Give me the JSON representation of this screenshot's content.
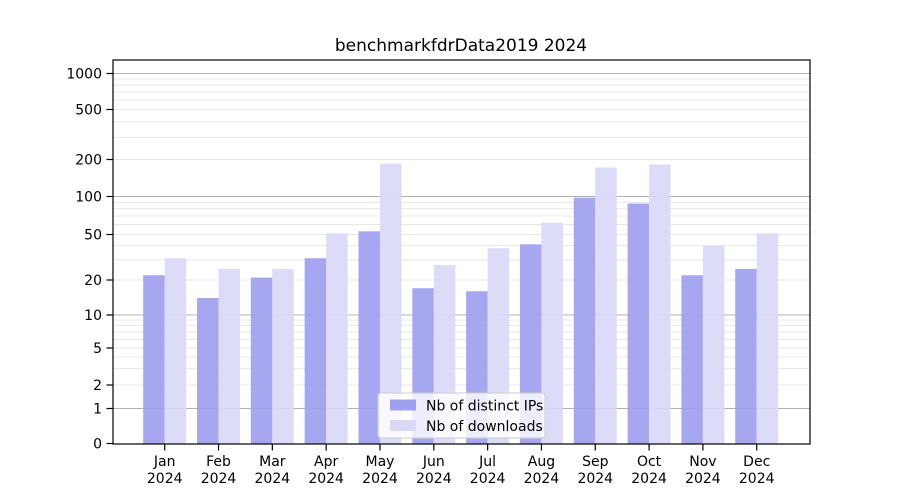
{
  "title": "benchmarkfdrData2019 2024",
  "colors": {
    "ips_bar": "#a0a0f0",
    "downloads_bar": "#d9d9f7",
    "grid_major": "#b3b3b3",
    "grid_minor": "#e8e8e8",
    "axis": "#000000",
    "legend_border": "#cccccc",
    "background": "#ffffff"
  },
  "legend": {
    "items": [
      {
        "label": "Nb of distinct IPs",
        "color": "#a0a0f0"
      },
      {
        "label": "Nb of downloads",
        "color": "#d9d9f7"
      }
    ]
  },
  "x_axis": {
    "months": [
      "Jan",
      "Feb",
      "Mar",
      "Apr",
      "May",
      "Jun",
      "Jul",
      "Aug",
      "Sep",
      "Oct",
      "Nov",
      "Dec"
    ],
    "year": "2024"
  },
  "y_axis": {
    "tick_labels": [
      "0",
      "1",
      "2",
      "5",
      "10",
      "20",
      "50",
      "100",
      "200",
      "500",
      "1000"
    ]
  },
  "chart_data": {
    "type": "bar",
    "title": "benchmarkfdrData2019 2024",
    "categories": [
      "Jan 2024",
      "Feb 2024",
      "Mar 2024",
      "Apr 2024",
      "May 2024",
      "Jun 2024",
      "Jul 2024",
      "Aug 2024",
      "Sep 2024",
      "Oct 2024",
      "Nov 2024",
      "Dec 2024"
    ],
    "series": [
      {
        "name": "Nb of distinct IPs",
        "color": "#a0a0f0",
        "values": [
          22,
          14,
          21,
          31,
          53,
          17,
          16,
          41,
          98,
          88,
          22,
          25
        ]
      },
      {
        "name": "Nb of downloads",
        "color": "#d9d9f7",
        "values": [
          31,
          25,
          25,
          51,
          185,
          27,
          38,
          62,
          172,
          182,
          40,
          51
        ]
      }
    ],
    "xlabel": "",
    "ylabel": "",
    "yscale": "symlog",
    "ylim": [
      0,
      1150
    ],
    "yticks": [
      0,
      1,
      2,
      5,
      10,
      20,
      50,
      100,
      200,
      500,
      1000
    ],
    "grid": "major+minor",
    "legend_position": "lower center"
  }
}
